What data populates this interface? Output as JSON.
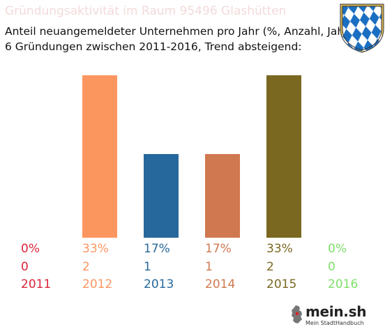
{
  "header": {
    "title": "Gründungsaktivität im Raum 95496 Glashütten",
    "subtitle_line1": "Anteil neuangemeldeter Unternehmen pro Jahr (%, Anzahl, Jahr)",
    "subtitle_line2": "6 Gründungen zwischen 2011-2016, Trend absteigend:"
  },
  "crest": {
    "icon": "bavarian-lozenge-crest-icon",
    "colors": [
      "#1a6fc2",
      "#ffffff"
    ]
  },
  "chart_data": {
    "type": "bar",
    "categories": [
      "2011",
      "2012",
      "2013",
      "2014",
      "2015",
      "2016"
    ],
    "percent_labels": [
      "0%",
      "33%",
      "17%",
      "17%",
      "33%",
      "0%"
    ],
    "counts": [
      0,
      2,
      1,
      1,
      2,
      0
    ],
    "values": [
      0,
      33,
      17,
      17,
      33,
      0
    ],
    "colors": [
      "#d8263a",
      "#fc965f",
      "#26689b",
      "#d07850",
      "#7a6820",
      "#7fe06a"
    ],
    "ylim": [
      0,
      33
    ],
    "title": "",
    "xlabel": "",
    "ylabel": ""
  },
  "logo": {
    "name": "mein.sh",
    "tagline": "Mein StadtHandbuch",
    "icon": "germany-map-icon"
  }
}
